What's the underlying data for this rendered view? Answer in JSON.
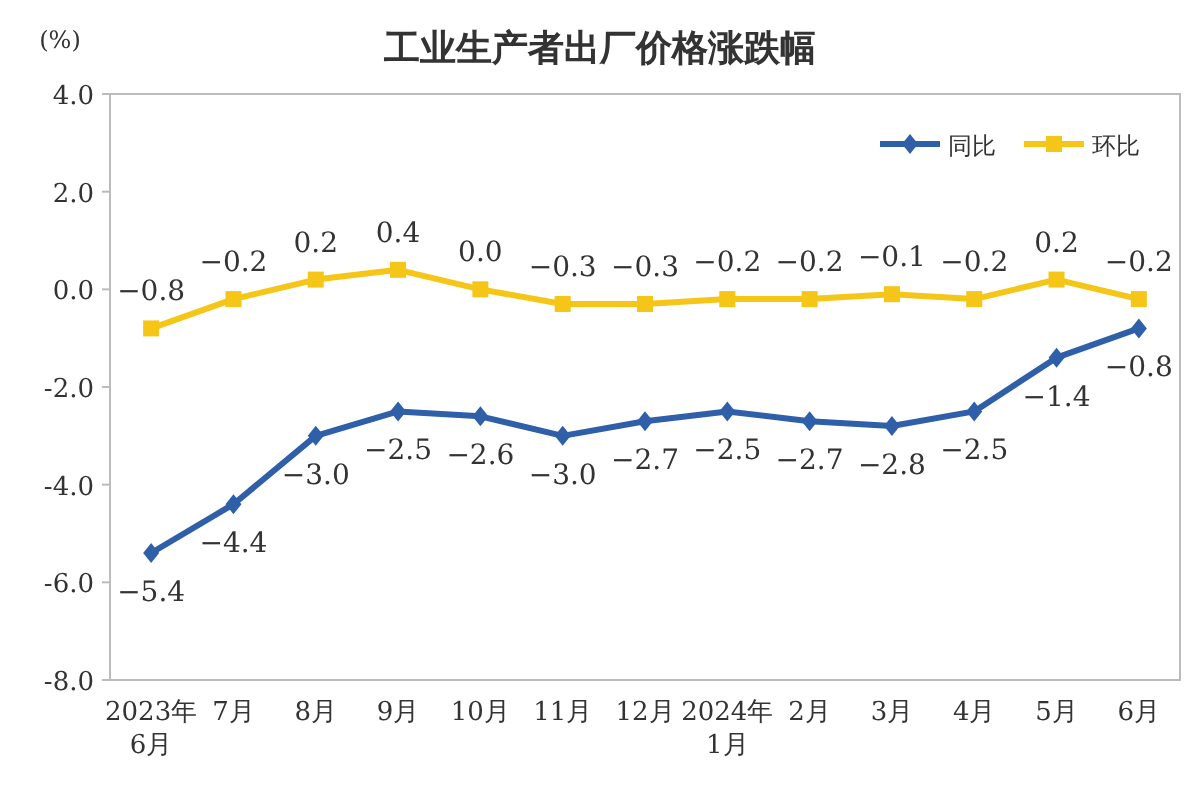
{
  "chart_data": {
    "type": "line",
    "title": "工业生产者出厂价格涨跌幅",
    "ylabel": "(%)",
    "categories": [
      "2023年\n6月",
      "7月",
      "8月",
      "9月",
      "10月",
      "11月",
      "12月",
      "2024年\n1月",
      "2月",
      "3月",
      "4月",
      "5月",
      "6月"
    ],
    "series": [
      {
        "name": "同比",
        "color": "#2e5fa8",
        "marker": "diamond",
        "values": [
          -5.4,
          -4.4,
          -3.0,
          -2.5,
          -2.6,
          -3.0,
          -2.7,
          -2.5,
          -2.7,
          -2.8,
          -2.5,
          -1.4,
          -0.8
        ],
        "value_labels": [
          "−5.4",
          "−4.4",
          "−3.0",
          "−2.5",
          "−2.6",
          "−3.0",
          "−2.7",
          "−2.5",
          "−2.7",
          "−2.8",
          "−2.5",
          "−1.4",
          "−0.8"
        ]
      },
      {
        "name": "环比",
        "color": "#f5c518",
        "marker": "square",
        "values": [
          -0.8,
          -0.2,
          0.2,
          0.4,
          0.0,
          -0.3,
          -0.3,
          -0.2,
          -0.2,
          -0.1,
          -0.2,
          0.2,
          -0.2
        ],
        "value_labels": [
          "−0.8",
          "−0.2",
          "0.2",
          "0.4",
          "0.0",
          "−0.3",
          "−0.3",
          "−0.2",
          "−0.2",
          "−0.1",
          "−0.2",
          "0.2",
          "−0.2"
        ]
      }
    ],
    "ylim": [
      -8.0,
      4.0
    ],
    "yticks": [
      {
        "value": 4,
        "label": "4.0"
      },
      {
        "value": 2,
        "label": "2.0"
      },
      {
        "value": 0,
        "label": "0.0"
      },
      {
        "value": -2,
        "label": "-2.0"
      },
      {
        "value": -4,
        "label": "-4.0"
      },
      {
        "value": -6,
        "label": "-6.0"
      },
      {
        "value": -8,
        "label": "-8.0"
      }
    ],
    "legend": "top right"
  }
}
